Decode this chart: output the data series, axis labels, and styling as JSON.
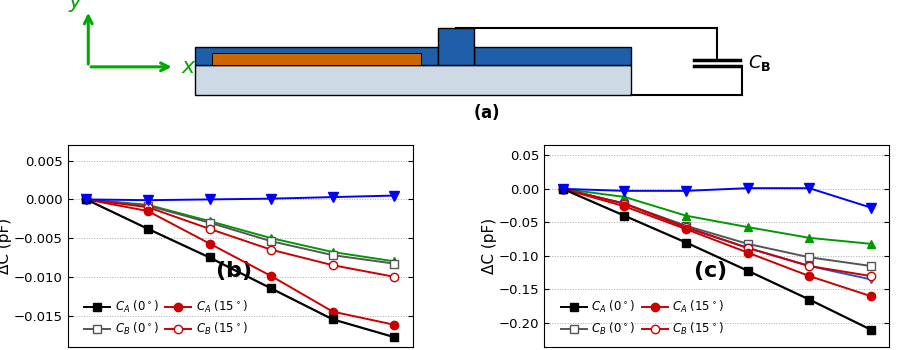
{
  "fig_width": 9.03,
  "fig_height": 3.5,
  "dpi": 100,
  "panel_b": {
    "ylabel": "ΔC (pF)",
    "ylim": [
      -0.019,
      0.007
    ],
    "yticks": [
      0.005,
      0.0,
      -0.005,
      -0.01,
      -0.015
    ],
    "x": [
      0,
      1,
      2,
      3,
      4,
      5
    ],
    "CA_0": [
      0,
      -0.0038,
      -0.0075,
      -0.0115,
      -0.0155,
      -0.0178
    ],
    "CB_0": [
      0,
      -0.0008,
      -0.003,
      -0.0054,
      -0.0072,
      -0.0083
    ],
    "CA_15": [
      0,
      -0.0015,
      -0.0057,
      -0.0099,
      -0.0145,
      -0.0162
    ],
    "CB_15": [
      0,
      -0.001,
      -0.0038,
      -0.0065,
      -0.0085,
      -0.01
    ],
    "green": [
      0,
      -0.0007,
      -0.0028,
      -0.005,
      -0.0068,
      -0.008
    ],
    "blue": [
      0,
      -0.0001,
      0.0,
      0.0001,
      0.0003,
      0.0005
    ]
  },
  "panel_c": {
    "ylabel": "ΔC (pF)",
    "ylim": [
      -0.235,
      0.065
    ],
    "yticks": [
      0.05,
      0.0,
      -0.05,
      -0.1,
      -0.15,
      -0.2
    ],
    "x": [
      0,
      1,
      2,
      3,
      4,
      5
    ],
    "CA_0": [
      0,
      -0.04,
      -0.08,
      -0.122,
      -0.165,
      -0.21
    ],
    "CB_0": [
      0,
      -0.022,
      -0.055,
      -0.082,
      -0.102,
      -0.115
    ],
    "CA_15": [
      0,
      -0.026,
      -0.06,
      -0.095,
      -0.13,
      -0.16
    ],
    "CB_15": [
      0,
      -0.022,
      -0.057,
      -0.088,
      -0.115,
      -0.13
    ],
    "blue_line": [
      0,
      -0.022,
      -0.055,
      -0.082,
      -0.102,
      -0.115
    ],
    "green": [
      0,
      -0.012,
      -0.028,
      -0.055,
      -0.075,
      -0.085
    ],
    "blue": [
      0,
      -0.003,
      -0.003,
      0.001,
      0.001,
      -0.028
    ]
  }
}
